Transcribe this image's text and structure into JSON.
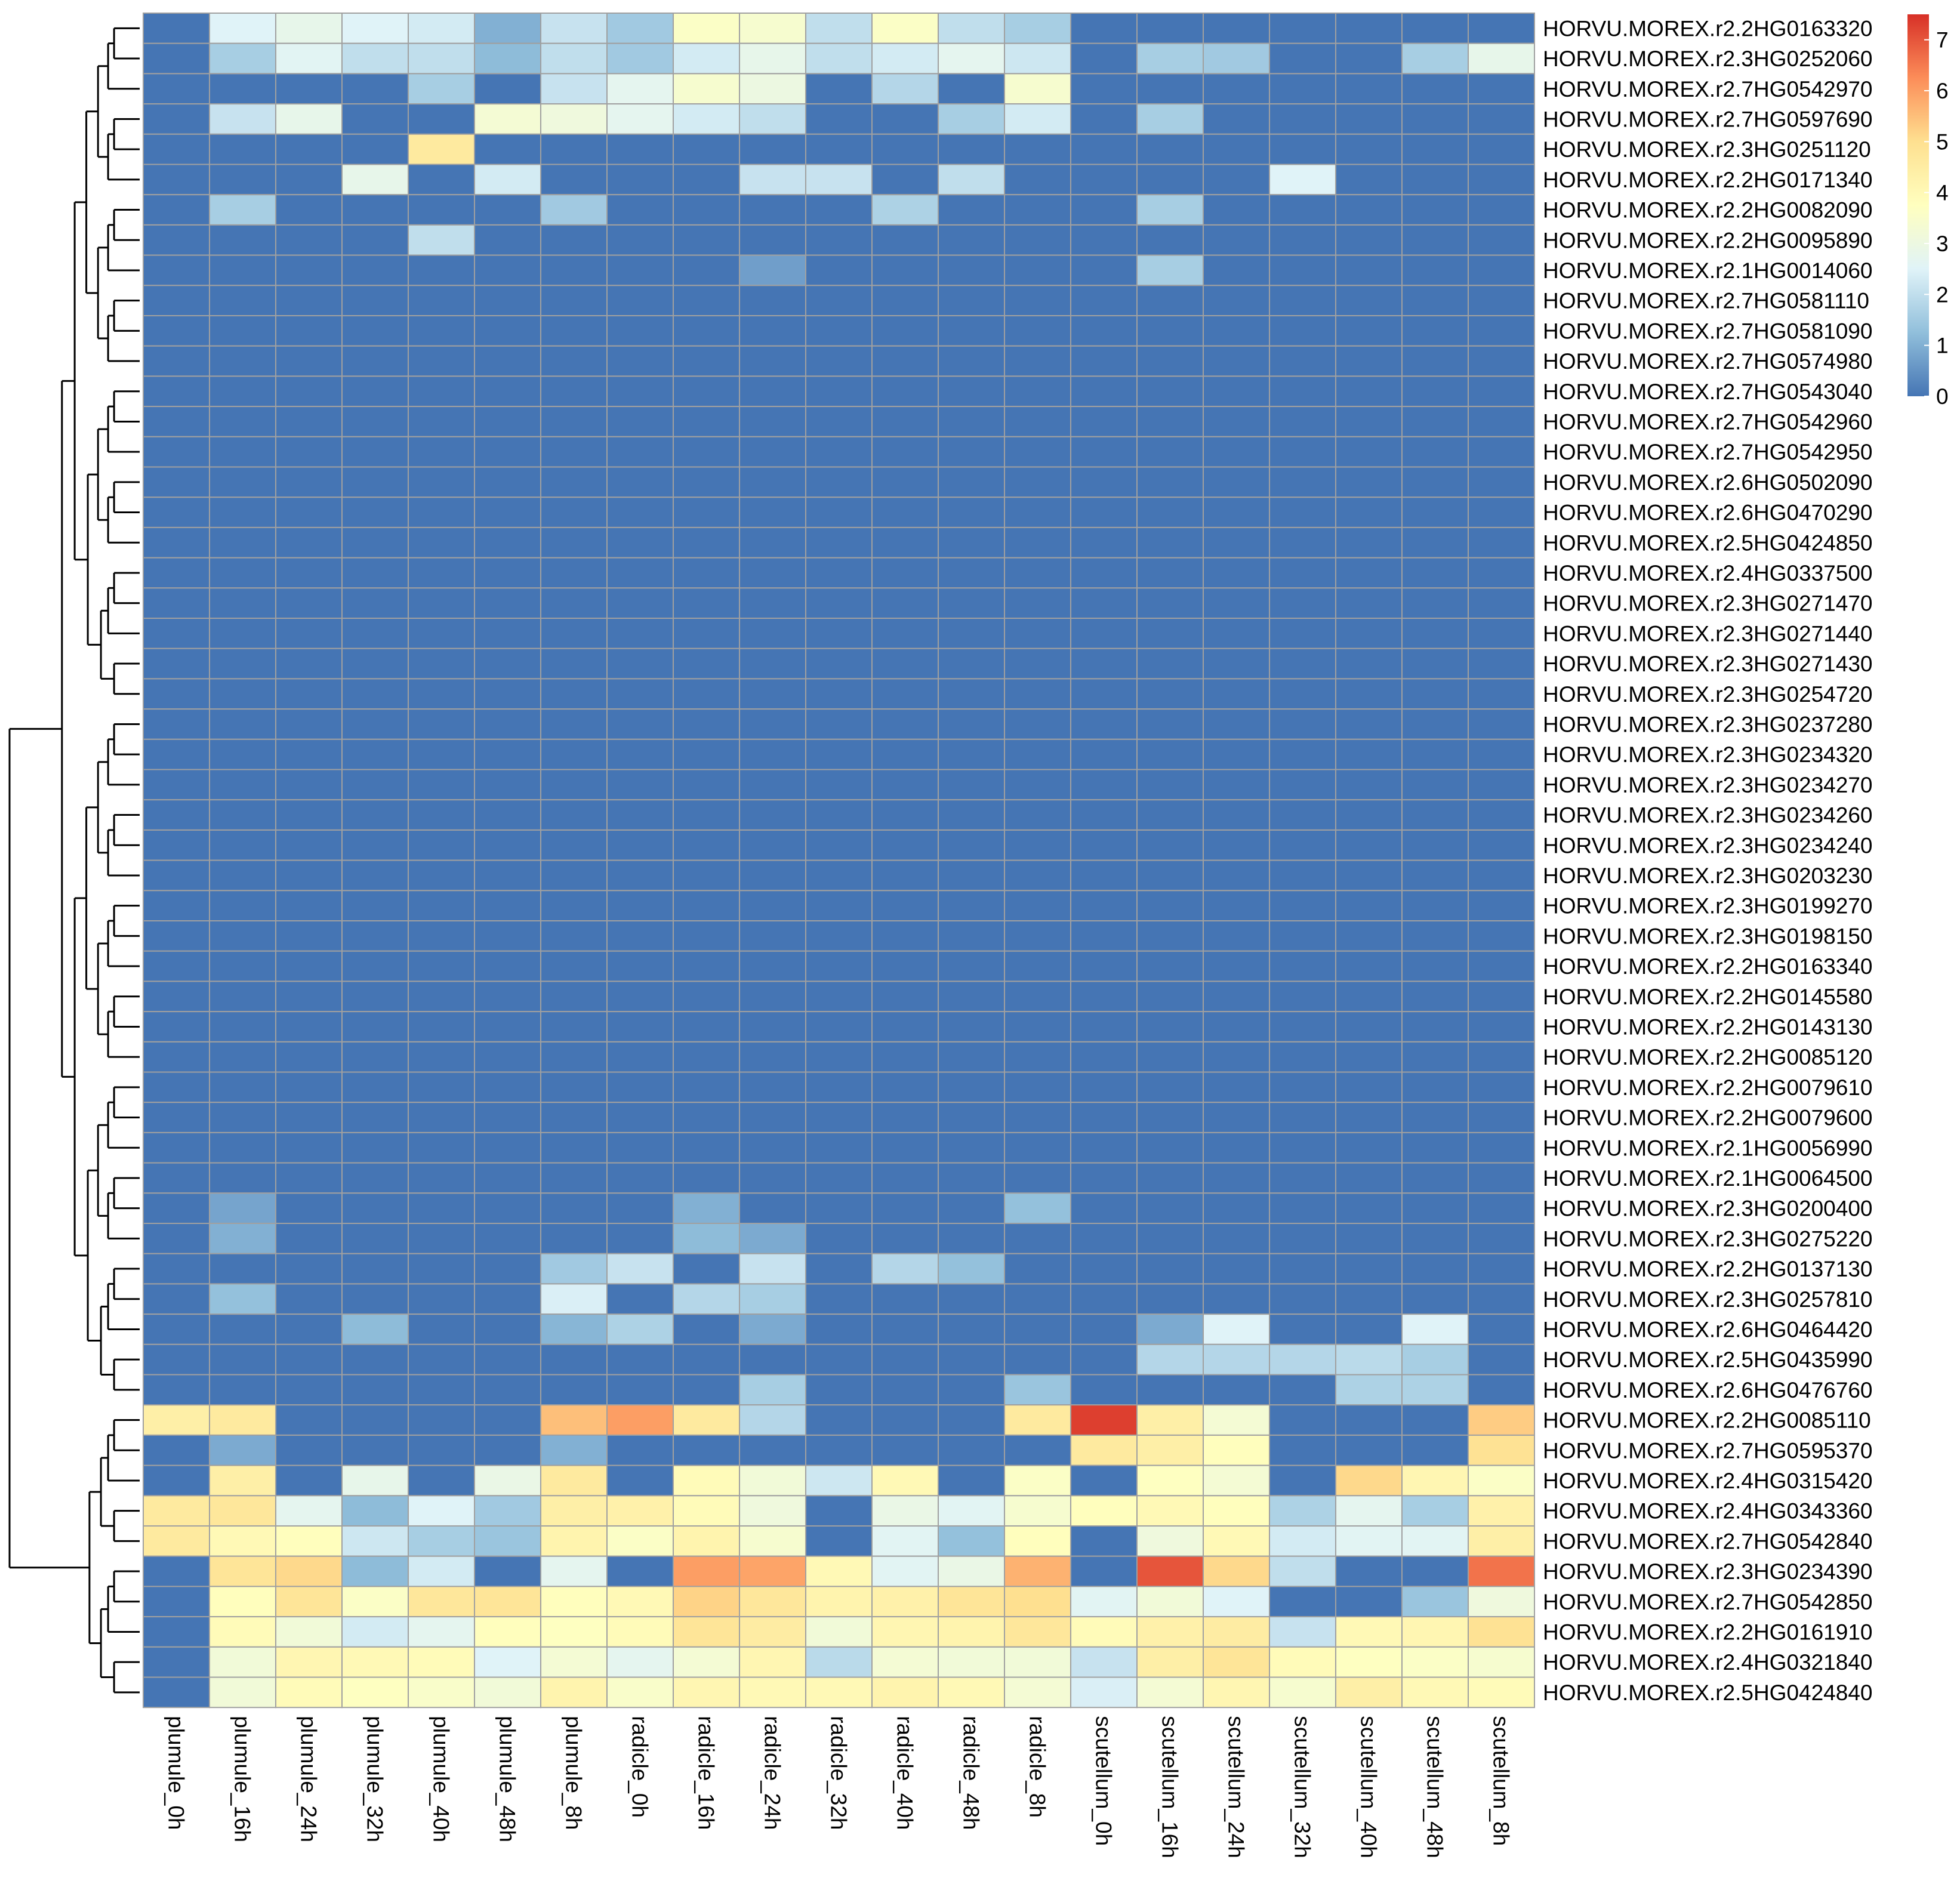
{
  "chart_data": {
    "type": "heatmap",
    "title": "",
    "rows": [
      "HORVU.MOREX.r2.2HG0163320",
      "HORVU.MOREX.r2.3HG0252060",
      "HORVU.MOREX.r2.7HG0542970",
      "HORVU.MOREX.r2.7HG0597690",
      "HORVU.MOREX.r2.3HG0251120",
      "HORVU.MOREX.r2.2HG0171340",
      "HORVU.MOREX.r2.2HG0082090",
      "HORVU.MOREX.r2.2HG0095890",
      "HORVU.MOREX.r2.1HG0014060",
      "HORVU.MOREX.r2.7HG0581110",
      "HORVU.MOREX.r2.7HG0581090",
      "HORVU.MOREX.r2.7HG0574980",
      "HORVU.MOREX.r2.7HG0543040",
      "HORVU.MOREX.r2.7HG0542960",
      "HORVU.MOREX.r2.7HG0542950",
      "HORVU.MOREX.r2.6HG0502090",
      "HORVU.MOREX.r2.6HG0470290",
      "HORVU.MOREX.r2.5HG0424850",
      "HORVU.MOREX.r2.4HG0337500",
      "HORVU.MOREX.r2.3HG0271470",
      "HORVU.MOREX.r2.3HG0271440",
      "HORVU.MOREX.r2.3HG0271430",
      "HORVU.MOREX.r2.3HG0254720",
      "HORVU.MOREX.r2.3HG0237280",
      "HORVU.MOREX.r2.3HG0234320",
      "HORVU.MOREX.r2.3HG0234270",
      "HORVU.MOREX.r2.3HG0234260",
      "HORVU.MOREX.r2.3HG0234240",
      "HORVU.MOREX.r2.3HG0203230",
      "HORVU.MOREX.r2.3HG0199270",
      "HORVU.MOREX.r2.3HG0198150",
      "HORVU.MOREX.r2.2HG0163340",
      "HORVU.MOREX.r2.2HG0145580",
      "HORVU.MOREX.r2.2HG0143130",
      "HORVU.MOREX.r2.2HG0085120",
      "HORVU.MOREX.r2.2HG0079610",
      "HORVU.MOREX.r2.2HG0079600",
      "HORVU.MOREX.r2.1HG0056990",
      "HORVU.MOREX.r2.1HG0064500",
      "HORVU.MOREX.r2.3HG0200400",
      "HORVU.MOREX.r2.3HG0275220",
      "HORVU.MOREX.r2.2HG0137130",
      "HORVU.MOREX.r2.3HG0257810",
      "HORVU.MOREX.r2.6HG0464420",
      "HORVU.MOREX.r2.5HG0435990",
      "HORVU.MOREX.r2.6HG0476760",
      "HORVU.MOREX.r2.2HG0085110",
      "HORVU.MOREX.r2.7HG0595370",
      "HORVU.MOREX.r2.4HG0315420",
      "HORVU.MOREX.r2.4HG0343360",
      "HORVU.MOREX.r2.7HG0542840",
      "HORVU.MOREX.r2.3HG0234390",
      "HORVU.MOREX.r2.7HG0542850",
      "HORVU.MOREX.r2.2HG0161910",
      "HORVU.MOREX.r2.4HG0321840",
      "HORVU.MOREX.r2.5HG0424840"
    ],
    "columns": [
      "plumule_0h",
      "plumule_16h",
      "plumule_24h",
      "plumule_32h",
      "plumule_40h",
      "plumule_48h",
      "plumule_8h",
      "radicle_0h",
      "radicle_16h",
      "radicle_24h",
      "radicle_32h",
      "radicle_40h",
      "radicle_48h",
      "radicle_8h",
      "scutellum_0h",
      "scutellum_16h",
      "scutellum_24h",
      "scutellum_32h",
      "scutellum_40h",
      "scutellum_48h",
      "scutellum_8h"
    ],
    "values": [
      [
        0,
        2.5,
        2.8,
        2.5,
        2.3,
        1.0,
        2.1,
        1.5,
        3.6,
        3.4,
        2.0,
        3.6,
        2.0,
        1.6,
        0,
        0,
        0,
        0,
        0,
        0,
        0
      ],
      [
        0,
        1.6,
        2.6,
        2.0,
        2.0,
        1.2,
        2.0,
        1.5,
        2.3,
        2.8,
        2.0,
        2.3,
        2.7,
        2.2,
        0,
        1.6,
        1.5,
        0,
        0,
        1.6,
        2.8
      ],
      [
        0,
        0,
        0,
        0,
        1.6,
        0,
        2.1,
        2.7,
        3.4,
        3.0,
        0,
        1.8,
        0,
        3.4,
        0,
        0,
        0,
        0,
        0,
        0,
        0
      ],
      [
        0,
        2.1,
        2.8,
        0,
        0,
        3.3,
        3.1,
        2.7,
        2.3,
        2.0,
        0,
        0,
        1.6,
        2.3,
        0,
        1.6,
        0,
        0,
        0,
        0,
        0
      ],
      [
        0,
        0,
        0,
        0,
        4.6,
        0,
        0,
        0,
        0,
        0,
        0,
        0,
        0,
        0,
        0,
        0,
        0,
        0,
        0,
        0,
        0
      ],
      [
        0,
        0,
        0,
        2.8,
        0,
        2.3,
        0,
        0,
        0,
        2.1,
        2.1,
        0,
        2.0,
        0,
        0,
        0,
        0,
        2.5,
        0,
        0,
        0
      ],
      [
        0,
        1.6,
        0,
        0,
        0,
        0,
        1.5,
        0,
        0,
        0,
        0,
        1.7,
        0,
        0,
        0,
        1.6,
        0,
        0,
        0,
        0,
        0
      ],
      [
        0,
        0,
        0,
        0,
        2.0,
        0,
        0,
        0,
        0,
        0,
        0,
        0,
        0,
        0,
        0,
        0,
        0,
        0,
        0,
        0,
        0
      ],
      [
        0,
        0,
        0,
        0,
        0,
        0,
        0,
        0,
        0,
        0.7,
        0,
        0,
        0,
        0,
        0,
        1.6,
        0,
        0,
        0,
        0,
        0
      ],
      [
        0,
        0,
        0,
        0,
        0,
        0,
        0,
        0,
        0,
        0,
        0,
        0,
        0,
        0,
        0,
        0,
        0,
        0,
        0,
        0,
        0
      ],
      [
        0,
        0,
        0,
        0,
        0,
        0,
        0,
        0,
        0,
        0,
        0,
        0,
        0,
        0,
        0,
        0,
        0,
        0,
        0,
        0,
        0
      ],
      [
        0,
        0,
        0,
        0,
        0,
        0,
        0,
        0,
        0,
        0,
        0,
        0,
        0,
        0,
        0,
        0,
        0,
        0,
        0,
        0,
        0
      ],
      [
        0,
        0,
        0,
        0,
        0,
        0,
        0,
        0,
        0,
        0,
        0,
        0,
        0,
        0,
        0,
        0,
        0,
        0,
        0,
        0,
        0
      ],
      [
        0,
        0,
        0,
        0,
        0,
        0,
        0,
        0,
        0,
        0,
        0,
        0,
        0,
        0,
        0,
        0,
        0,
        0,
        0,
        0,
        0
      ],
      [
        0,
        0,
        0,
        0,
        0,
        0,
        0,
        0,
        0,
        0,
        0,
        0,
        0,
        0,
        0,
        0,
        0,
        0,
        0,
        0,
        0
      ],
      [
        0,
        0,
        0,
        0,
        0,
        0,
        0,
        0,
        0,
        0,
        0,
        0,
        0,
        0,
        0,
        0,
        0,
        0,
        0,
        0,
        0
      ],
      [
        0,
        0,
        0,
        0,
        0,
        0,
        0,
        0,
        0,
        0,
        0,
        0,
        0,
        0,
        0,
        0,
        0,
        0,
        0,
        0,
        0
      ],
      [
        0,
        0,
        0,
        0,
        0,
        0,
        0,
        0,
        0,
        0,
        0,
        0,
        0,
        0,
        0,
        0,
        0,
        0,
        0,
        0,
        0
      ],
      [
        0,
        0,
        0,
        0,
        0,
        0,
        0,
        0,
        0,
        0,
        0,
        0,
        0,
        0,
        0,
        0,
        0,
        0,
        0,
        0,
        0
      ],
      [
        0,
        0,
        0,
        0,
        0,
        0,
        0,
        0,
        0,
        0,
        0,
        0,
        0,
        0,
        0,
        0,
        0,
        0,
        0,
        0,
        0
      ],
      [
        0,
        0,
        0,
        0,
        0,
        0,
        0,
        0,
        0,
        0,
        0,
        0,
        0,
        0,
        0,
        0,
        0,
        0,
        0,
        0,
        0
      ],
      [
        0,
        0,
        0,
        0,
        0,
        0,
        0,
        0,
        0,
        0,
        0,
        0,
        0,
        0,
        0,
        0,
        0,
        0,
        0,
        0,
        0
      ],
      [
        0,
        0,
        0,
        0,
        0,
        0,
        0,
        0,
        0,
        0,
        0,
        0,
        0,
        0,
        0,
        0,
        0,
        0,
        0,
        0,
        0
      ],
      [
        0,
        0,
        0,
        0,
        0,
        0,
        0,
        0,
        0,
        0,
        0,
        0,
        0,
        0,
        0,
        0,
        0,
        0,
        0,
        0,
        0
      ],
      [
        0,
        0,
        0,
        0,
        0,
        0,
        0,
        0,
        0,
        0,
        0,
        0,
        0,
        0,
        0,
        0,
        0,
        0,
        0,
        0,
        0
      ],
      [
        0,
        0,
        0,
        0,
        0,
        0,
        0,
        0,
        0,
        0,
        0,
        0,
        0,
        0,
        0,
        0,
        0,
        0,
        0,
        0,
        0
      ],
      [
        0,
        0,
        0,
        0,
        0,
        0,
        0,
        0,
        0,
        0,
        0,
        0,
        0,
        0,
        0,
        0,
        0,
        0,
        0,
        0,
        0
      ],
      [
        0,
        0,
        0,
        0,
        0,
        0,
        0,
        0,
        0,
        0,
        0,
        0,
        0,
        0,
        0,
        0,
        0,
        0,
        0,
        0,
        0
      ],
      [
        0,
        0,
        0,
        0,
        0,
        0,
        0,
        0,
        0,
        0,
        0,
        0,
        0,
        0,
        0,
        0,
        0,
        0,
        0,
        0,
        0
      ],
      [
        0,
        0,
        0,
        0,
        0,
        0,
        0,
        0,
        0,
        0,
        0,
        0,
        0,
        0,
        0,
        0,
        0,
        0,
        0,
        0,
        0
      ],
      [
        0,
        0,
        0,
        0,
        0,
        0,
        0,
        0,
        0,
        0,
        0,
        0,
        0,
        0,
        0,
        0,
        0,
        0,
        0,
        0,
        0
      ],
      [
        0,
        0,
        0,
        0,
        0,
        0,
        0,
        0,
        0,
        0,
        0,
        0,
        0,
        0,
        0,
        0,
        0,
        0,
        0,
        0,
        0
      ],
      [
        0,
        0,
        0,
        0,
        0,
        0,
        0,
        0,
        0,
        0,
        0,
        0,
        0,
        0,
        0,
        0,
        0,
        0,
        0,
        0,
        0
      ],
      [
        0,
        0,
        0,
        0,
        0,
        0,
        0,
        0,
        0,
        0,
        0,
        0,
        0,
        0,
        0,
        0,
        0,
        0,
        0,
        0,
        0
      ],
      [
        0,
        0,
        0,
        0,
        0,
        0,
        0,
        0,
        0,
        0,
        0,
        0,
        0,
        0,
        0,
        0,
        0,
        0,
        0,
        0,
        0
      ],
      [
        0,
        0,
        0,
        0,
        0,
        0,
        0,
        0,
        0,
        0,
        0,
        0,
        0,
        0,
        0,
        0,
        0,
        0,
        0,
        0,
        0
      ],
      [
        0,
        0,
        0,
        0,
        0,
        0,
        0,
        0,
        0,
        0,
        0,
        0,
        0,
        0,
        0,
        0,
        0,
        0,
        0,
        0,
        0
      ],
      [
        0,
        0,
        0,
        0,
        0,
        0,
        0,
        0,
        0,
        0,
        0,
        0,
        0,
        0,
        0,
        0,
        0,
        0,
        0,
        0,
        0
      ],
      [
        0,
        0,
        0,
        0,
        0,
        0,
        0,
        0,
        0,
        0,
        0,
        0,
        0,
        0,
        0,
        0,
        0,
        0,
        0,
        0,
        0
      ],
      [
        0,
        0.8,
        0,
        0,
        0,
        0,
        0,
        0,
        1.0,
        0,
        0,
        0,
        0,
        1.3,
        0,
        0,
        0,
        0,
        0,
        0,
        0
      ],
      [
        0,
        1.0,
        0,
        0,
        0,
        0,
        0,
        0,
        1.2,
        0.9,
        0,
        0,
        0,
        0,
        0,
        0,
        0,
        0,
        0,
        0,
        0
      ],
      [
        0,
        0,
        0,
        0,
        0,
        0,
        1.5,
        2.1,
        0,
        2.1,
        0,
        1.8,
        1.3,
        0,
        0,
        0,
        0,
        0,
        0,
        0,
        0
      ],
      [
        0,
        1.3,
        0,
        0,
        0,
        0,
        2.4,
        0,
        1.8,
        1.6,
        0,
        0,
        0,
        0,
        0,
        0,
        0,
        0,
        0,
        0,
        0
      ],
      [
        0,
        0,
        0,
        1.2,
        0,
        0,
        1.1,
        1.7,
        0,
        0.9,
        0,
        0,
        0,
        0,
        0,
        0.9,
        2.5,
        0,
        0,
        2.5,
        0
      ],
      [
        0,
        0,
        0,
        0,
        0,
        0,
        0,
        0,
        0,
        0,
        0,
        0,
        0,
        0,
        0,
        1.8,
        1.8,
        1.8,
        1.9,
        1.6,
        0
      ],
      [
        0,
        0,
        0,
        0,
        0,
        0,
        0,
        0,
        0,
        1.6,
        0,
        0,
        0,
        1.4,
        0,
        0,
        0,
        0,
        1.7,
        1.7,
        0
      ],
      [
        4.4,
        4.6,
        0,
        0,
        0,
        0,
        5.5,
        6.0,
        4.6,
        1.8,
        0,
        0,
        0,
        4.6,
        7.3,
        4.4,
        3.3,
        0,
        0,
        0,
        5.3
      ],
      [
        0,
        0.9,
        0,
        0,
        0,
        0,
        1.0,
        0,
        0,
        0,
        0,
        0,
        0,
        0,
        4.6,
        4.4,
        3.8,
        0,
        0,
        0,
        4.9
      ],
      [
        0,
        4.4,
        0,
        2.8,
        0,
        2.9,
        4.6,
        0,
        3.9,
        3.2,
        2.2,
        4.0,
        0,
        3.6,
        0,
        3.7,
        3.3,
        0,
        5.1,
        4.1,
        3.6
      ],
      [
        4.6,
        4.7,
        2.7,
        1.2,
        2.5,
        1.5,
        4.4,
        4.3,
        3.9,
        3.1,
        0,
        2.9,
        2.6,
        3.4,
        3.8,
        4.0,
        3.8,
        1.7,
        2.7,
        1.6,
        4.3
      ],
      [
        4.6,
        4.0,
        3.8,
        2.2,
        1.6,
        1.4,
        4.2,
        3.6,
        4.2,
        3.4,
        0,
        2.6,
        1.3,
        3.8,
        0,
        3.1,
        4.0,
        2.3,
        2.6,
        2.6,
        4.4
      ],
      [
        0,
        4.8,
        5.1,
        1.2,
        2.3,
        0,
        2.7,
        0,
        6.0,
        5.9,
        4.0,
        2.6,
        2.9,
        5.7,
        0,
        7.0,
        5.1,
        2.0,
        0,
        0,
        6.6
      ],
      [
        0,
        3.8,
        4.8,
        3.6,
        4.7,
        4.8,
        3.8,
        4.0,
        5.2,
        4.7,
        4.2,
        4.3,
        4.8,
        5.0,
        2.6,
        3.2,
        2.5,
        0,
        0,
        1.4,
        3.1
      ],
      [
        0,
        3.9,
        3.2,
        2.3,
        2.7,
        3.8,
        3.7,
        3.9,
        4.8,
        4.5,
        3.2,
        4.1,
        4.2,
        4.7,
        3.9,
        4.3,
        4.5,
        2.1,
        4.0,
        4.1,
        4.9
      ],
      [
        0,
        3.2,
        4.1,
        4.0,
        3.9,
        2.5,
        3.3,
        2.7,
        3.3,
        4.1,
        1.9,
        3.3,
        3.2,
        3.2,
        2.1,
        4.4,
        4.8,
        3.9,
        3.7,
        3.6,
        3.4
      ],
      [
        0,
        3.2,
        3.9,
        3.7,
        3.5,
        3.2,
        4.2,
        3.5,
        4.1,
        4.0,
        4.0,
        4.2,
        4.0,
        3.3,
        2.4,
        3.3,
        4.1,
        3.4,
        4.4,
        4.0,
        3.9
      ]
    ],
    "color_scale": {
      "min": 0,
      "max": 7.5,
      "ticks": [
        0,
        1,
        2,
        3,
        4,
        5,
        6,
        7
      ],
      "colors": [
        "#4575b4",
        "#91bfdb",
        "#e0f3f8",
        "#ffffbf",
        "#fee090",
        "#fc8d59",
        "#d73027"
      ]
    },
    "cell_border_color": "#a0a0a0",
    "row_dendrogram": "left",
    "legend_position": "top-right"
  }
}
